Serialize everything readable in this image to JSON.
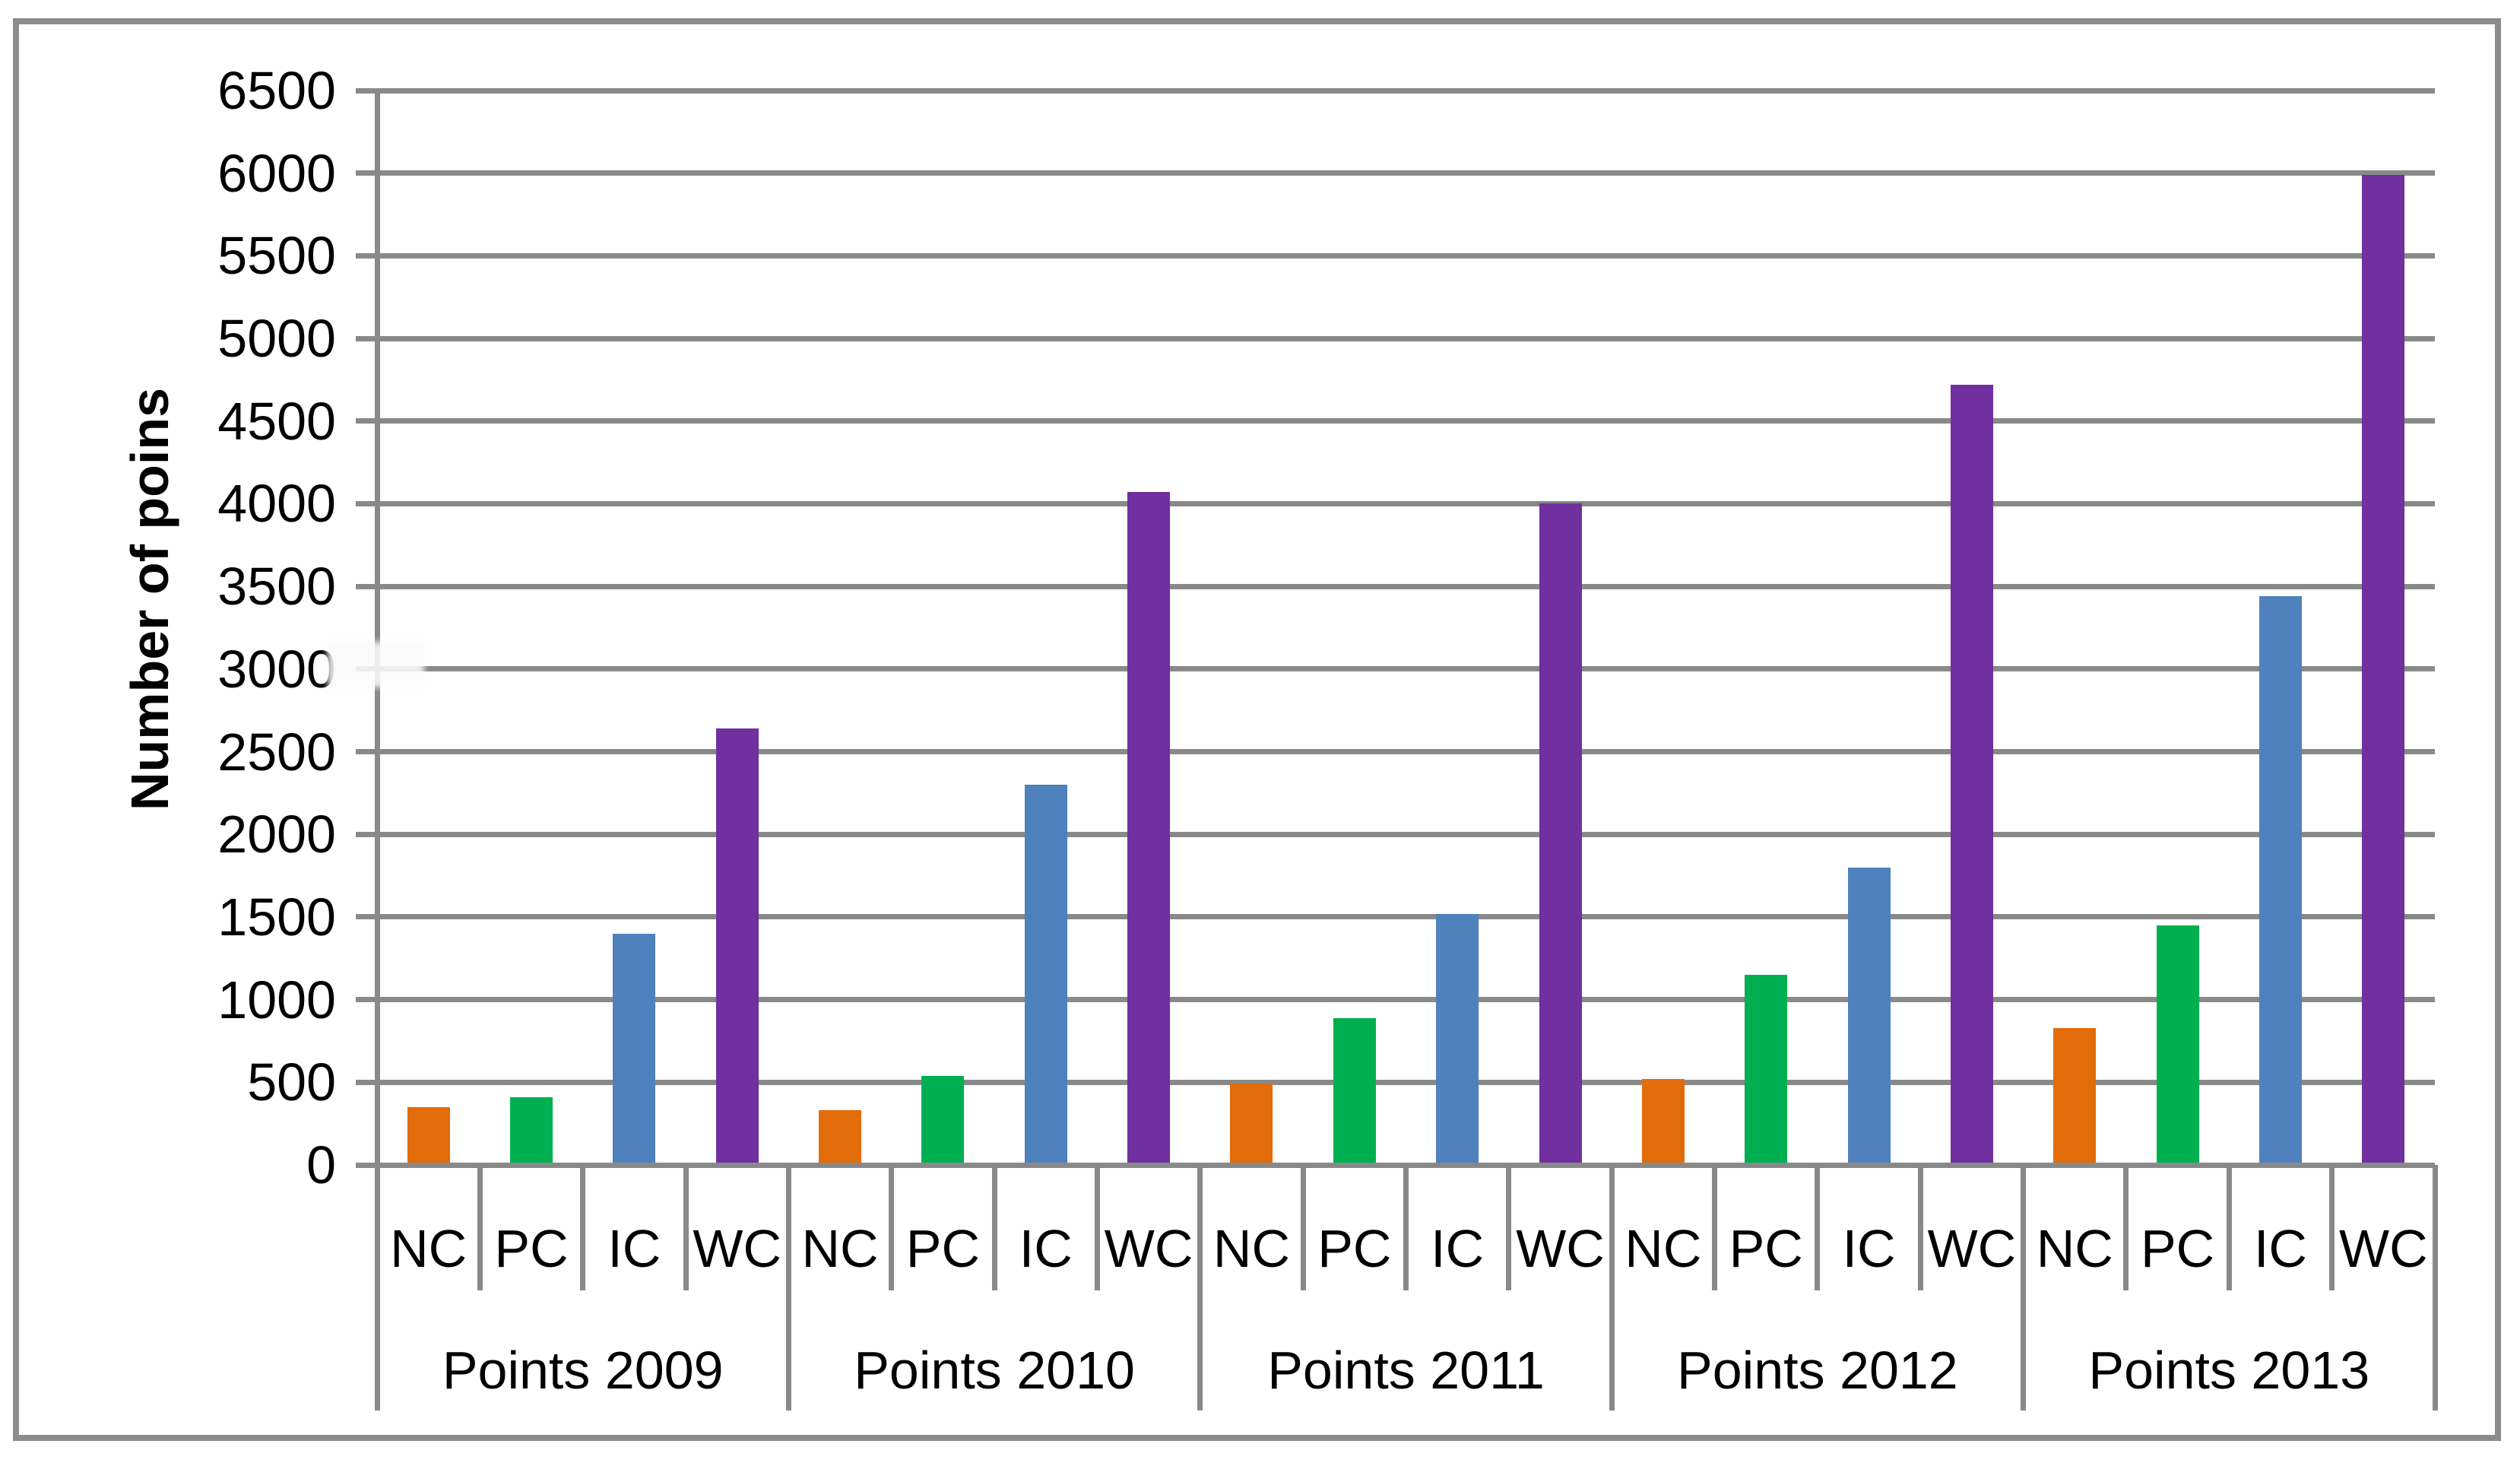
{
  "chart_data": {
    "type": "bar",
    "title": "",
    "ylabel": "Number of poins",
    "ylim": [
      0,
      6500
    ],
    "ytick_step": 500,
    "yticks": [
      0,
      500,
      1000,
      1500,
      2000,
      2500,
      3000,
      3500,
      4000,
      4500,
      5000,
      5500,
      6000,
      6500
    ],
    "ytick_labels": [
      "0",
      "500",
      "1000",
      "1500",
      "2000",
      "2500",
      "3000",
      "3500",
      "4000",
      "4500",
      "5000",
      "5500",
      "6000",
      "6500"
    ],
    "categories": [
      "NC",
      "PC",
      "IC",
      "WC"
    ],
    "group_labels": [
      "Points 2009",
      "Points 2010",
      "Points 2011",
      "Points 2012",
      "Points 2013"
    ],
    "series": [
      {
        "name": "NC",
        "color": "#E36C0A",
        "values": [
          350,
          330,
          490,
          520,
          830
        ]
      },
      {
        "name": "PC",
        "color": "#00B050",
        "values": [
          410,
          540,
          890,
          1150,
          1450
        ]
      },
      {
        "name": "IC",
        "color": "#4F81BD",
        "values": [
          1400,
          2300,
          1520,
          1800,
          3440
        ]
      },
      {
        "name": "WC",
        "color": "#7030A0",
        "values": [
          2640,
          4070,
          4000,
          4720,
          5990
        ]
      }
    ],
    "grid": true,
    "legend_position": "none",
    "line_color": "#898989",
    "border_color": "#8C8C8C",
    "text_color": "#000000"
  }
}
